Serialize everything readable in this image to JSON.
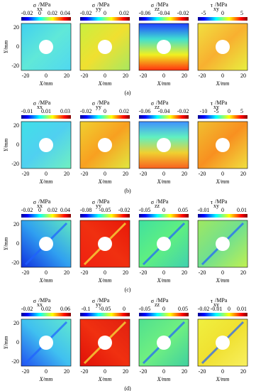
{
  "rows": [
    {
      "label": "(a)",
      "panels": [
        {
          "symbol": "σ",
          "sub": "xx",
          "unit": "/MPa",
          "ticks": [
            "-0.02",
            "0",
            "0.02",
            "0.04"
          ]
        },
        {
          "symbol": "σ",
          "sub": "yy",
          "unit": "/MPa",
          "ticks": [
            "-0.02",
            "0",
            "0.02"
          ]
        },
        {
          "symbol": "σ",
          "sub": "zz",
          "unit": "/MPa",
          "ticks": [
            "-0.06",
            "-0.04",
            "-0.02"
          ]
        },
        {
          "symbol": "τ",
          "sub": "xy",
          "unit": "/MPa",
          "ticks": [
            "-5",
            "0",
            "5"
          ]
        }
      ]
    },
    {
      "label": "(b)",
      "panels": [
        {
          "symbol": "σ",
          "sub": "xx",
          "unit": "/MPa",
          "ticks": [
            "-0.01",
            "0.01",
            "0.03"
          ]
        },
        {
          "symbol": "σ",
          "sub": "yy",
          "unit": "/MPa",
          "ticks": [
            "-0.02",
            "0",
            "0.02"
          ]
        },
        {
          "symbol": "σ",
          "sub": "zz",
          "unit": "/MPa",
          "ticks": [
            "-0.06",
            "-0.04",
            "-0.02"
          ]
        },
        {
          "symbol": "τ",
          "sub": "xy",
          "unit": "/MPa",
          "ticks": [
            "-10",
            "-5",
            "0",
            "5"
          ]
        }
      ]
    },
    {
      "label": "(c)",
      "panels": [
        {
          "symbol": "σ",
          "sub": "xx",
          "unit": "/MPa",
          "ticks": [
            "-0.02",
            "0",
            "0.02",
            "0.04"
          ]
        },
        {
          "symbol": "σ",
          "sub": "yy",
          "unit": "/MPa",
          "ticks": [
            "-0.08",
            "-0.05",
            "-0.02"
          ]
        },
        {
          "symbol": "σ",
          "sub": "zz",
          "unit": "/MPa",
          "ticks": [
            "-0.05",
            "0",
            "0.05"
          ]
        },
        {
          "symbol": "τ",
          "sub": "xy",
          "unit": "/MPa",
          "ticks": [
            "-0.01",
            "0",
            "0.01"
          ]
        }
      ]
    },
    {
      "label": "(d)",
      "panels": [
        {
          "symbol": "σ",
          "sub": "xx",
          "unit": "/MPa",
          "ticks": [
            "-0.02",
            "0.02",
            "0.06"
          ]
        },
        {
          "symbol": "σ",
          "sub": "yy",
          "unit": "/MPa",
          "ticks": [
            "-0.1",
            "-0.05",
            "0"
          ]
        },
        {
          "symbol": "σ",
          "sub": "zz",
          "unit": "/MPa",
          "ticks": [
            "-0.05",
            "0",
            "0.05"
          ]
        },
        {
          "symbol": "τ",
          "sub": "xy",
          "unit": "/MPa",
          "ticks": [
            "-0.02",
            "-0.01",
            "0",
            "0.01"
          ]
        }
      ]
    }
  ],
  "x_ticks": [
    "-20",
    "0",
    "20"
  ],
  "y_ticks": [
    "20",
    "0",
    "-20"
  ],
  "x_label": "X/mm",
  "y_label": "Y/mm"
}
